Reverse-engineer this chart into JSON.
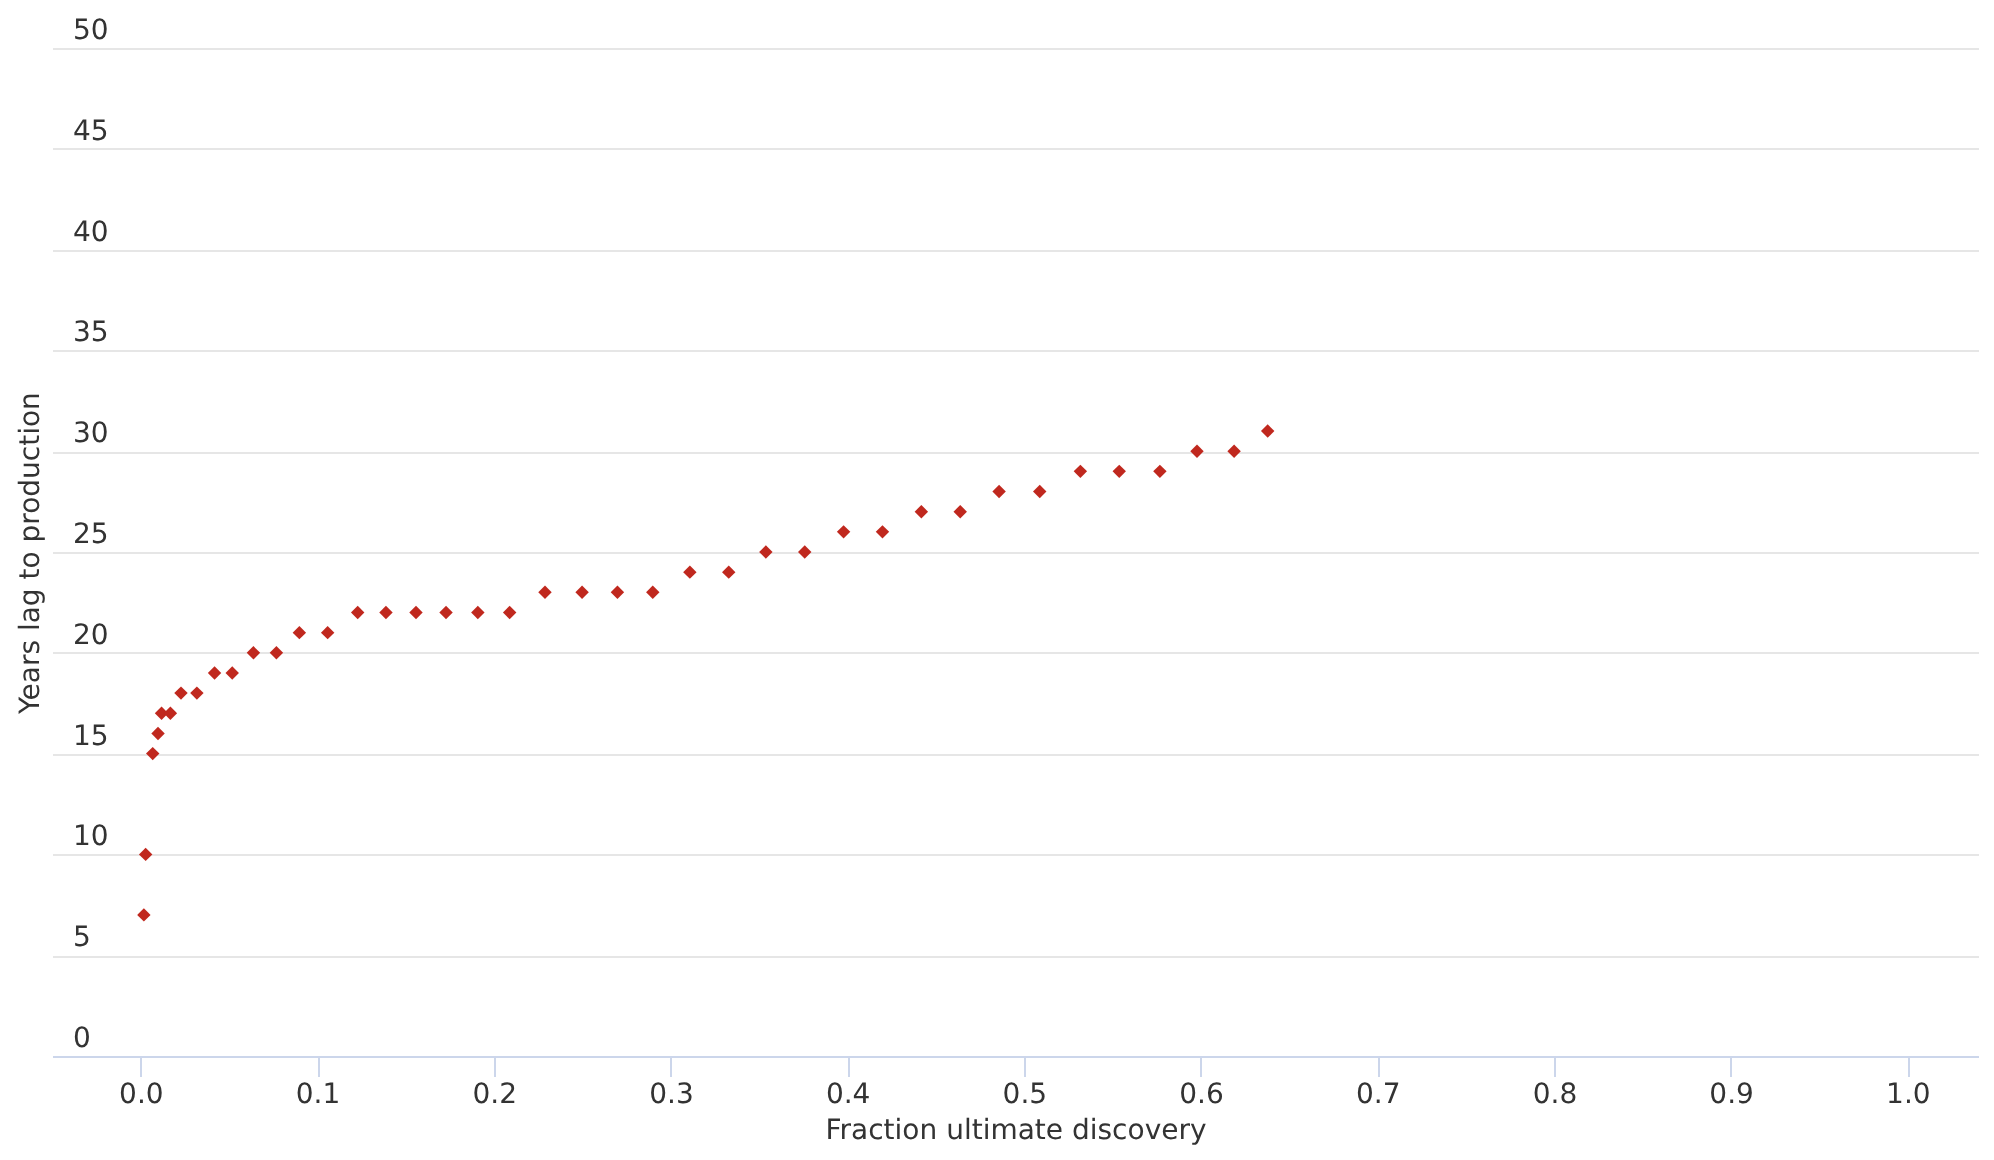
{
  "chart_data": {
    "type": "scatter",
    "xlabel": "Fraction ultimate discovery",
    "ylabel": "Years lag to production",
    "x": [
      0.002,
      0.003,
      0.007,
      0.01,
      0.012,
      0.017,
      0.023,
      0.032,
      0.042,
      0.052,
      0.064,
      0.077,
      0.09,
      0.106,
      0.123,
      0.139,
      0.156,
      0.173,
      0.191,
      0.209,
      0.229,
      0.25,
      0.27,
      0.29,
      0.311,
      0.333,
      0.354,
      0.376,
      0.398,
      0.42,
      0.442,
      0.464,
      0.486,
      0.509,
      0.532,
      0.554,
      0.577,
      0.598,
      0.619,
      0.638
    ],
    "series": [
      {
        "color": "#c0281e",
        "values": [
          7,
          10,
          15,
          16,
          17,
          17,
          18,
          18,
          19,
          19,
          20,
          20,
          21,
          21,
          22,
          22,
          22,
          22,
          22,
          22,
          23,
          23,
          23,
          23,
          24,
          24,
          25,
          25,
          26,
          26,
          27,
          27,
          28,
          28,
          29,
          29,
          29,
          30,
          30,
          31
        ]
      }
    ],
    "xlim": [
      -0.05,
      1.04
    ],
    "xticks": [
      {
        "value": 0,
        "label": "0.0"
      },
      0.1,
      0.2,
      0.3,
      0.4,
      0.5,
      0.6,
      0.7,
      0.8,
      0.9,
      {
        "value": 1,
        "label": "1.0"
      }
    ],
    "ylim": [
      0,
      50
    ],
    "yticks": [
      0,
      5,
      10,
      15,
      20,
      25,
      30,
      35,
      40,
      45,
      50
    ],
    "grid": "y",
    "marker": "diamond"
  }
}
